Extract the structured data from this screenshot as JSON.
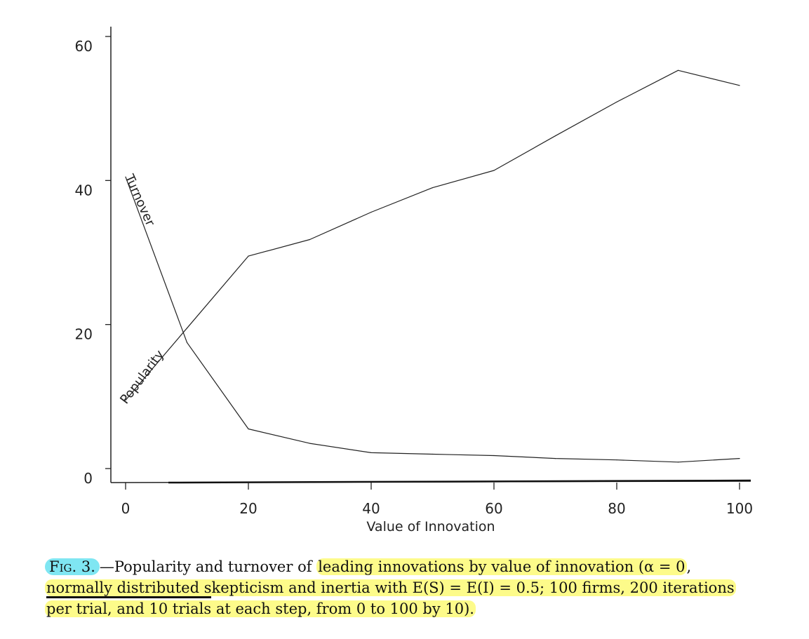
{
  "chart_data": {
    "type": "line",
    "title": "",
    "xlabel": "Value of Innovation",
    "ylabel": "",
    "xlim": [
      -2,
      102
    ],
    "ylim": [
      -1,
      62
    ],
    "x_ticks": [
      0,
      20,
      40,
      60,
      80,
      100
    ],
    "y_ticks": [
      0,
      20,
      40,
      60
    ],
    "x_tick_labels": [
      "0",
      "20",
      "40",
      "60",
      "80",
      "100"
    ],
    "y_tick_labels": [
      "0",
      "20",
      "40",
      "60"
    ],
    "x": [
      0,
      10,
      20,
      30,
      40,
      50,
      60,
      70,
      80,
      90,
      100
    ],
    "series": [
      {
        "name": "Turnover",
        "label": "Turnover",
        "values": [
          40.5,
          17.5,
          5.5,
          3.5,
          2.2,
          2.0,
          1.8,
          1.4,
          1.2,
          0.9,
          1.4
        ]
      },
      {
        "name": "Popularity",
        "label": "Popularity",
        "values": [
          9.5,
          19.5,
          29.5,
          31.8,
          35.6,
          39.0,
          41.4,
          46.2,
          50.9,
          55.3,
          53.2
        ]
      }
    ]
  },
  "caption": {
    "fig_label": "Fig. 3.",
    "line1_rest_before": "—Popularity and turnover of",
    "line1_highlight": "leading innovations by value of innovation (α = 0",
    "line1_end": ",",
    "line2_underlined": "normally distributed s",
    "line2_rest": "kepticism and inertia with E(S) = E(I) = 0.5; 100 firms, 200 iterations",
    "line3_underlined": "per trial, and 10 trials",
    "line3_rest": " at each step, from 0 to 100 by 10)."
  },
  "colors": {
    "highlight_yellow": "#fdfb8a",
    "highlight_cyan": "#7fe6f2",
    "ink": "#111111"
  }
}
